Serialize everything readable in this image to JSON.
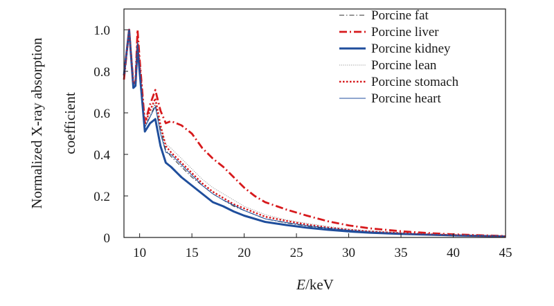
{
  "chart_data": {
    "type": "line",
    "xlabel_italic": "E",
    "xlabel_unit": "/keV",
    "ylabel_line1": "Normalized X-ray absorption",
    "ylabel_line2": "coefficient",
    "xlim": [
      8.5,
      45
    ],
    "ylim": [
      0,
      1.1
    ],
    "xticks": [
      10,
      15,
      20,
      25,
      30,
      35,
      40,
      45
    ],
    "yticks": [
      0,
      0.2,
      0.4,
      0.6,
      0.8,
      1.0
    ],
    "ytick_labels": [
      "0",
      "0.2",
      "0.4",
      "0.6",
      "0.8",
      "1.0"
    ],
    "legend_position": "top-right",
    "grid": false,
    "series": [
      {
        "name": "Porcine fat",
        "color": "#2b2b2b",
        "dash": "dashdot",
        "width": 1,
        "points": [
          [
            8.5,
            0.78
          ],
          [
            9.0,
            1.0
          ],
          [
            9.4,
            0.74
          ],
          [
            9.6,
            0.75
          ],
          [
            9.8,
            0.94
          ],
          [
            10.0,
            0.82
          ],
          [
            10.5,
            0.54
          ],
          [
            11.0,
            0.58
          ],
          [
            11.5,
            0.64
          ],
          [
            12.0,
            0.52
          ],
          [
            12.5,
            0.42
          ],
          [
            13.0,
            0.39
          ],
          [
            14.0,
            0.34
          ],
          [
            15.0,
            0.29
          ],
          [
            16.0,
            0.25
          ],
          [
            17.0,
            0.21
          ],
          [
            18.0,
            0.18
          ],
          [
            19.0,
            0.15
          ],
          [
            20.0,
            0.13
          ],
          [
            21.0,
            0.11
          ],
          [
            22.0,
            0.09
          ],
          [
            24.0,
            0.07
          ],
          [
            26.0,
            0.055
          ],
          [
            28.0,
            0.043
          ],
          [
            30.0,
            0.033
          ],
          [
            32.0,
            0.026
          ],
          [
            35.0,
            0.019
          ],
          [
            38.0,
            0.014
          ],
          [
            40.0,
            0.011
          ],
          [
            43.0,
            0.008
          ],
          [
            45.0,
            0.006
          ]
        ]
      },
      {
        "name": "Porcine liver",
        "color": "#d7191c",
        "dash": "dashdot",
        "width": 2.8,
        "points": [
          [
            8.5,
            0.76
          ],
          [
            9.0,
            1.0
          ],
          [
            9.4,
            0.74
          ],
          [
            9.6,
            0.75
          ],
          [
            9.8,
            1.0
          ],
          [
            10.0,
            0.86
          ],
          [
            10.5,
            0.55
          ],
          [
            11.0,
            0.64
          ],
          [
            11.5,
            0.71
          ],
          [
            12.0,
            0.61
          ],
          [
            12.5,
            0.55
          ],
          [
            13.0,
            0.56
          ],
          [
            14.0,
            0.54
          ],
          [
            15.0,
            0.5
          ],
          [
            16.0,
            0.43
          ],
          [
            17.0,
            0.38
          ],
          [
            18.0,
            0.34
          ],
          [
            19.0,
            0.29
          ],
          [
            20.0,
            0.24
          ],
          [
            21.0,
            0.2
          ],
          [
            22.0,
            0.17
          ],
          [
            24.0,
            0.135
          ],
          [
            26.0,
            0.105
          ],
          [
            28.0,
            0.078
          ],
          [
            30.0,
            0.058
          ],
          [
            32.0,
            0.044
          ],
          [
            35.0,
            0.03
          ],
          [
            38.0,
            0.02
          ],
          [
            40.0,
            0.015
          ],
          [
            43.0,
            0.01
          ],
          [
            45.0,
            0.007
          ]
        ]
      },
      {
        "name": "Porcine kidney",
        "color": "#1f4e9c",
        "dash": "solid",
        "width": 3,
        "points": [
          [
            8.5,
            0.78
          ],
          [
            9.0,
            1.0
          ],
          [
            9.4,
            0.72
          ],
          [
            9.6,
            0.73
          ],
          [
            9.8,
            0.92
          ],
          [
            10.0,
            0.8
          ],
          [
            10.5,
            0.51
          ],
          [
            11.0,
            0.55
          ],
          [
            11.5,
            0.57
          ],
          [
            12.0,
            0.44
          ],
          [
            12.5,
            0.36
          ],
          [
            13.0,
            0.34
          ],
          [
            14.0,
            0.29
          ],
          [
            15.0,
            0.25
          ],
          [
            16.0,
            0.21
          ],
          [
            17.0,
            0.17
          ],
          [
            18.0,
            0.15
          ],
          [
            19.0,
            0.125
          ],
          [
            20.0,
            0.105
          ],
          [
            21.0,
            0.09
          ],
          [
            22.0,
            0.075
          ],
          [
            24.0,
            0.06
          ],
          [
            26.0,
            0.047
          ],
          [
            28.0,
            0.037
          ],
          [
            30.0,
            0.029
          ],
          [
            32.0,
            0.023
          ],
          [
            35.0,
            0.017
          ],
          [
            38.0,
            0.013
          ],
          [
            40.0,
            0.01
          ],
          [
            43.0,
            0.007
          ],
          [
            45.0,
            0.005
          ]
        ]
      },
      {
        "name": "Porcine lean",
        "color": "#9a9a9a",
        "dash": "dotted",
        "width": 1,
        "points": [
          [
            8.5,
            0.78
          ],
          [
            9.0,
            1.0
          ],
          [
            9.4,
            0.74
          ],
          [
            9.6,
            0.75
          ],
          [
            9.8,
            0.95
          ],
          [
            10.0,
            0.82
          ],
          [
            10.5,
            0.54
          ],
          [
            11.0,
            0.59
          ],
          [
            11.5,
            0.65
          ],
          [
            12.0,
            0.53
          ],
          [
            12.5,
            0.45
          ],
          [
            13.0,
            0.43
          ],
          [
            14.0,
            0.38
          ],
          [
            15.0,
            0.33
          ],
          [
            16.0,
            0.28
          ],
          [
            17.0,
            0.24
          ],
          [
            18.0,
            0.21
          ],
          [
            19.0,
            0.18
          ],
          [
            20.0,
            0.15
          ],
          [
            21.0,
            0.13
          ],
          [
            22.0,
            0.11
          ],
          [
            24.0,
            0.085
          ],
          [
            26.0,
            0.068
          ],
          [
            28.0,
            0.053
          ],
          [
            30.0,
            0.041
          ],
          [
            32.0,
            0.032
          ],
          [
            35.0,
            0.023
          ],
          [
            38.0,
            0.016
          ],
          [
            40.0,
            0.013
          ],
          [
            43.0,
            0.009
          ],
          [
            45.0,
            0.007
          ]
        ]
      },
      {
        "name": "Porcine stomach",
        "color": "#d7191c",
        "dash": "dotted",
        "width": 2.4,
        "points": [
          [
            8.5,
            0.78
          ],
          [
            9.0,
            1.0
          ],
          [
            9.4,
            0.74
          ],
          [
            9.6,
            0.75
          ],
          [
            9.8,
            0.96
          ],
          [
            10.0,
            0.84
          ],
          [
            10.5,
            0.55
          ],
          [
            11.0,
            0.61
          ],
          [
            11.5,
            0.67
          ],
          [
            12.0,
            0.54
          ],
          [
            12.5,
            0.44
          ],
          [
            13.0,
            0.41
          ],
          [
            14.0,
            0.36
          ],
          [
            15.0,
            0.31
          ],
          [
            16.0,
            0.26
          ],
          [
            17.0,
            0.22
          ],
          [
            18.0,
            0.19
          ],
          [
            19.0,
            0.16
          ],
          [
            20.0,
            0.14
          ],
          [
            21.0,
            0.12
          ],
          [
            22.0,
            0.1
          ],
          [
            24.0,
            0.08
          ],
          [
            26.0,
            0.062
          ],
          [
            28.0,
            0.048
          ],
          [
            30.0,
            0.037
          ],
          [
            32.0,
            0.029
          ],
          [
            35.0,
            0.021
          ],
          [
            38.0,
            0.015
          ],
          [
            40.0,
            0.012
          ],
          [
            43.0,
            0.008
          ],
          [
            45.0,
            0.006
          ]
        ]
      },
      {
        "name": "Porcine heart",
        "color": "#1f4e9c",
        "dash": "solid",
        "width": 1,
        "points": [
          [
            8.5,
            0.78
          ],
          [
            9.0,
            1.0
          ],
          [
            9.4,
            0.74
          ],
          [
            9.6,
            0.75
          ],
          [
            9.8,
            0.94
          ],
          [
            10.0,
            0.82
          ],
          [
            10.5,
            0.53
          ],
          [
            11.0,
            0.58
          ],
          [
            11.5,
            0.63
          ],
          [
            12.0,
            0.5
          ],
          [
            12.5,
            0.41
          ],
          [
            13.0,
            0.4
          ],
          [
            14.0,
            0.35
          ],
          [
            15.0,
            0.3
          ],
          [
            16.0,
            0.25
          ],
          [
            17.0,
            0.21
          ],
          [
            18.0,
            0.18
          ],
          [
            19.0,
            0.155
          ],
          [
            20.0,
            0.13
          ],
          [
            21.0,
            0.11
          ],
          [
            22.0,
            0.09
          ],
          [
            24.0,
            0.072
          ],
          [
            26.0,
            0.057
          ],
          [
            28.0,
            0.045
          ],
          [
            30.0,
            0.035
          ],
          [
            32.0,
            0.027
          ],
          [
            35.0,
            0.02
          ],
          [
            38.0,
            0.014
          ],
          [
            40.0,
            0.011
          ],
          [
            43.0,
            0.008
          ],
          [
            45.0,
            0.006
          ]
        ]
      }
    ]
  }
}
